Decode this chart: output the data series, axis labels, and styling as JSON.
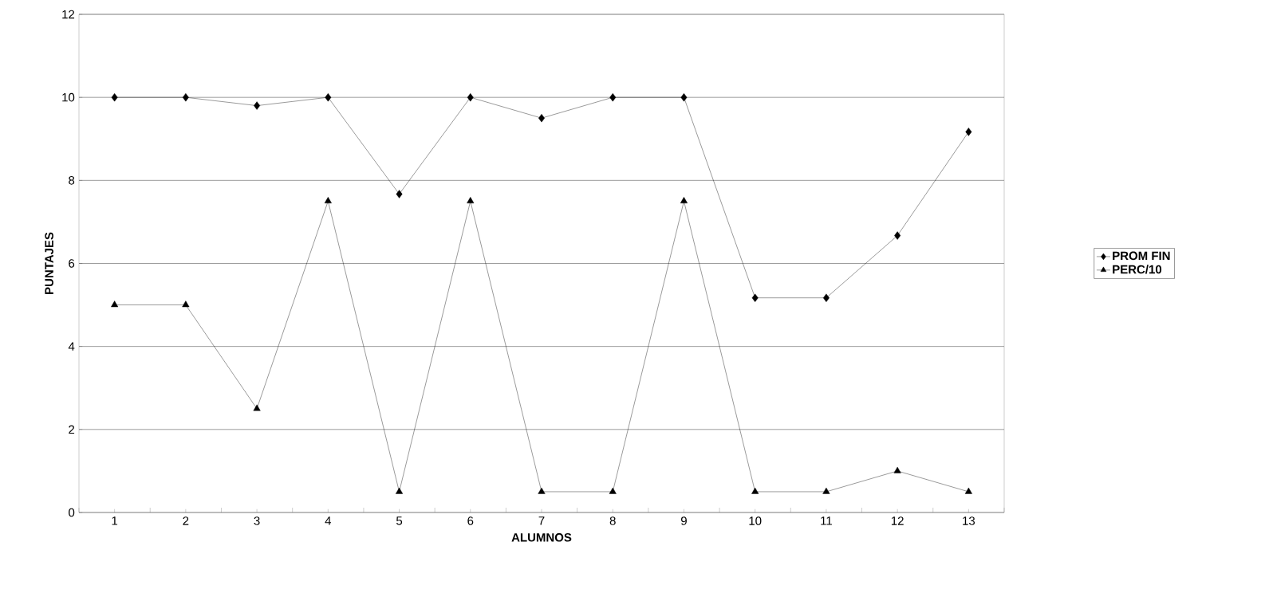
{
  "chart_data": {
    "type": "line",
    "xlabel": "ALUMNOS",
    "ylabel": "PUNTAJES",
    "categories": [
      "1",
      "2",
      "3",
      "4",
      "5",
      "6",
      "7",
      "8",
      "9",
      "10",
      "11",
      "12",
      "13"
    ],
    "series": [
      {
        "name": "PROM FIN",
        "color": "#000000",
        "marker": "diamond",
        "values": [
          10,
          10,
          9.8,
          10,
          7.67,
          10,
          9.5,
          10,
          10,
          5.17,
          5.17,
          6.67,
          9.17
        ]
      },
      {
        "name": "PERC/10",
        "color": "#000000",
        "marker": "triangle",
        "values": [
          5,
          5,
          2.5,
          7.5,
          0.5,
          7.5,
          0.5,
          0.5,
          7.5,
          0.5,
          0.5,
          1,
          0.5
        ]
      }
    ],
    "ylim": [
      0,
      12
    ],
    "yticks": [
      0,
      2,
      4,
      6,
      8,
      10,
      12
    ],
    "grid": "y",
    "legend": "right",
    "line_style": "solid"
  }
}
